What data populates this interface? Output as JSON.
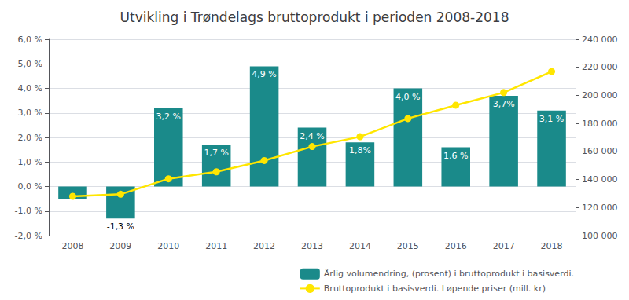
{
  "chart_data": {
    "type": "bar",
    "title": "Utvikling i Trøndelags bruttoprodukt i perioden 2008-2018",
    "categories": [
      "2008",
      "2009",
      "2010",
      "2011",
      "2012",
      "2013",
      "2014",
      "2015",
      "2016",
      "2017",
      "2018"
    ],
    "series": [
      {
        "name": "Årlig volumendring, (prosent) i bruttoprodukt i basisverdi.",
        "type": "bar",
        "color": "#1a8a8a",
        "values": [
          -0.5,
          -1.3,
          3.2,
          1.7,
          4.9,
          2.4,
          1.8,
          4.0,
          1.6,
          3.7,
          3.1
        ],
        "value_labels": [
          null,
          "-1,3 %",
          "3,2 %",
          "1,7 %",
          "4,9 %",
          "2,4 %",
          "1,8%",
          "4,0 %",
          "1,6 %",
          "3,7%",
          "3,1 %"
        ]
      },
      {
        "name": "Bruttoprodukt i basisverdi. Løpende priser (mill. kr)",
        "type": "line",
        "color": "#FFE600",
        "marker": "circle",
        "axis": "y2",
        "values": [
          128000,
          129500,
          140500,
          145500,
          153500,
          163500,
          170500,
          183500,
          193000,
          202000,
          217000
        ]
      }
    ],
    "ylim": [
      -2.0,
      6.0
    ],
    "yticks": [
      {
        "value": -2.0,
        "label": "-2,0 %"
      },
      {
        "value": -1.0,
        "label": "-1,0 %"
      },
      {
        "value": 0.0,
        "label": "0,0 %"
      },
      {
        "value": 1.0,
        "label": "1,0 %"
      },
      {
        "value": 2.0,
        "label": "2,0 %"
      },
      {
        "value": 3.0,
        "label": "3,0 %"
      },
      {
        "value": 4.0,
        "label": "4,0 %"
      },
      {
        "value": 5.0,
        "label": "5,0 %"
      },
      {
        "value": 6.0,
        "label": "6,0 %"
      }
    ],
    "y2lim": [
      100000,
      240000
    ],
    "y2ticks": [
      {
        "value": 100000,
        "label": "100 000"
      },
      {
        "value": 120000,
        "label": "120 000"
      },
      {
        "value": 140000,
        "label": "140 000"
      },
      {
        "value": 160000,
        "label": "160 000"
      },
      {
        "value": 180000,
        "label": "180 000"
      },
      {
        "value": 200000,
        "label": "200 000"
      },
      {
        "value": 220000,
        "label": "220 000"
      },
      {
        "value": 240000,
        "label": "240 000"
      }
    ],
    "grid": true,
    "legend": "lower right",
    "data_labels": true
  }
}
